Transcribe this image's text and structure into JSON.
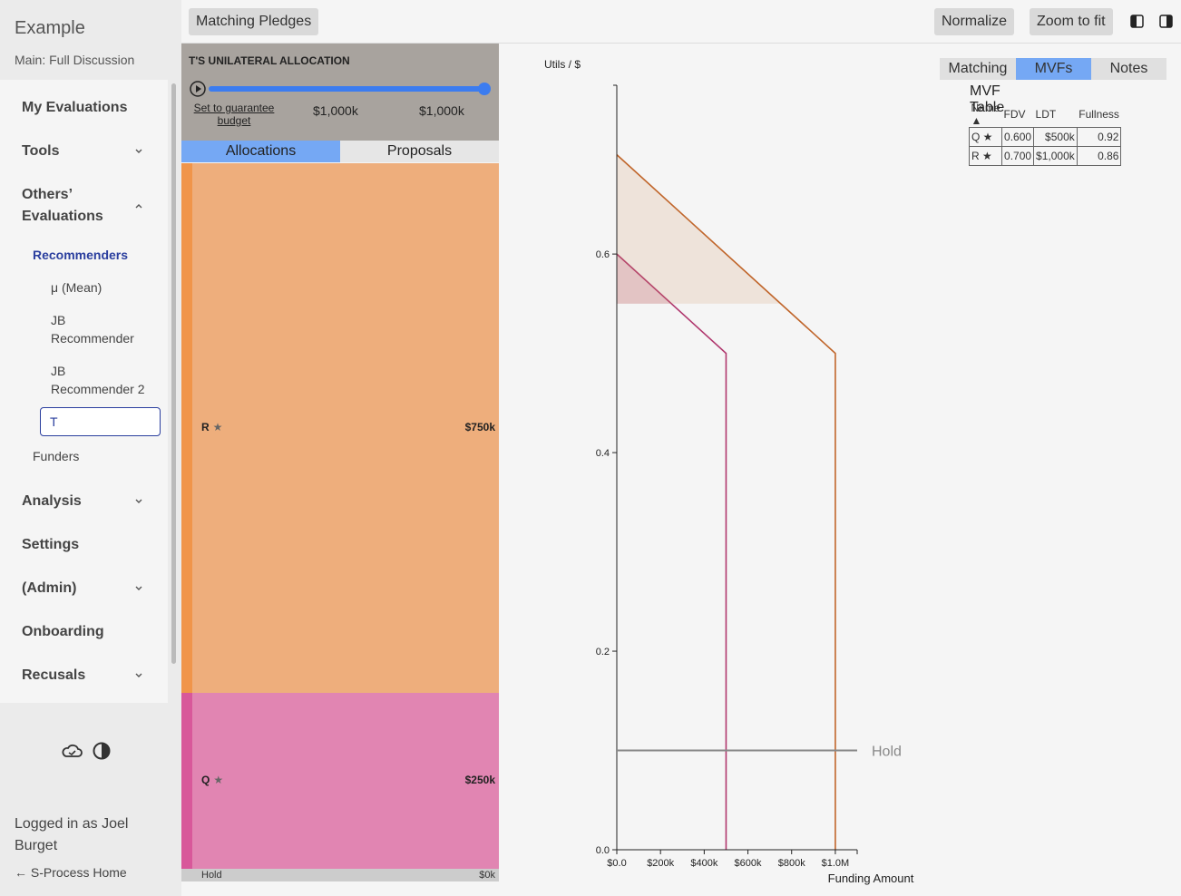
{
  "sidebar": {
    "title": "Example",
    "subtitle": "Main: Full Discussion",
    "nav": [
      "My Evaluations",
      "Tools",
      "Others’ Evaluations",
      "Analysis",
      "Settings",
      "(Admin)",
      "Onboarding",
      "Recusals"
    ],
    "subnav": [
      "Recommenders",
      "μ (Mean)",
      "JB Recommender",
      "JB Recommender 2",
      "T",
      "Funders"
    ],
    "login": "Logged in as Joel Burget",
    "home": "← S-Process Home"
  },
  "toolbar": {
    "left": "Matching Pledges",
    "buttons": [
      "Normalize",
      "Zoom to fit"
    ]
  },
  "allocation": {
    "heading": "T'S UNILATERAL ALLOCATION",
    "guarantee": "Set to guarantee budget",
    "slider_labels": [
      "$1,000k",
      "$1,000k"
    ],
    "tabs": [
      "Allocations",
      "Proposals"
    ],
    "bars": {
      "categories": [
        "R",
        "Q",
        "Hold"
      ],
      "values": [
        750000,
        250000,
        0
      ],
      "value_labels": [
        "$750k",
        "$250k",
        "$0k"
      ],
      "colors": [
        "#eeae7c",
        "#e185b2",
        "#cccccc"
      ],
      "strip_colors": [
        "#f0954a",
        "#d8589a",
        "#bbbbbb"
      ]
    }
  },
  "chart_data": {
    "type": "line",
    "y_label": "Utils / $",
    "x_label": "Funding Amount",
    "xlim": [
      0,
      1100000
    ],
    "xticks": [
      {
        "value": 0,
        "label": "$0.0"
      },
      {
        "value": 200000,
        "label": "$200k"
      },
      {
        "value": 400000,
        "label": "$400k"
      },
      {
        "value": 600000,
        "label": "$600k"
      },
      {
        "value": 800000,
        "label": "$800k"
      },
      {
        "value": 1000000,
        "label": "$1.0M"
      }
    ],
    "ylim": [
      0,
      0.77
    ],
    "yticks": [
      {
        "value": 0,
        "label": "0.0"
      },
      0.2,
      0.4,
      0.6
    ],
    "threshold": 0.55,
    "series": [
      {
        "name": "Q",
        "color": "#b0386e",
        "fill": "rgba(176,56,110,0.2)",
        "x": [
          0,
          500000,
          500000
        ],
        "values": [
          0.6,
          0.5,
          0
        ]
      },
      {
        "name": "R",
        "color": "#c0652a",
        "fill": "rgba(210,140,90,0.17)",
        "x": [
          0,
          1000000,
          1000000
        ],
        "values": [
          0.7,
          0.5,
          0
        ]
      }
    ],
    "hold": {
      "name": "Hold",
      "value": 0.1,
      "color": "#888888"
    }
  },
  "side_panel": {
    "tabs": [
      "Matching",
      "MVFs",
      "Notes"
    ],
    "table": {
      "title": "MVF Table",
      "columns": [
        "Name",
        "FDV",
        "LDT",
        "Fullness"
      ],
      "rows": [
        [
          "Q",
          "0.600",
          "$500k",
          "0.92"
        ],
        [
          "R",
          "0.700",
          "$1,000k",
          "0.86"
        ]
      ]
    }
  }
}
